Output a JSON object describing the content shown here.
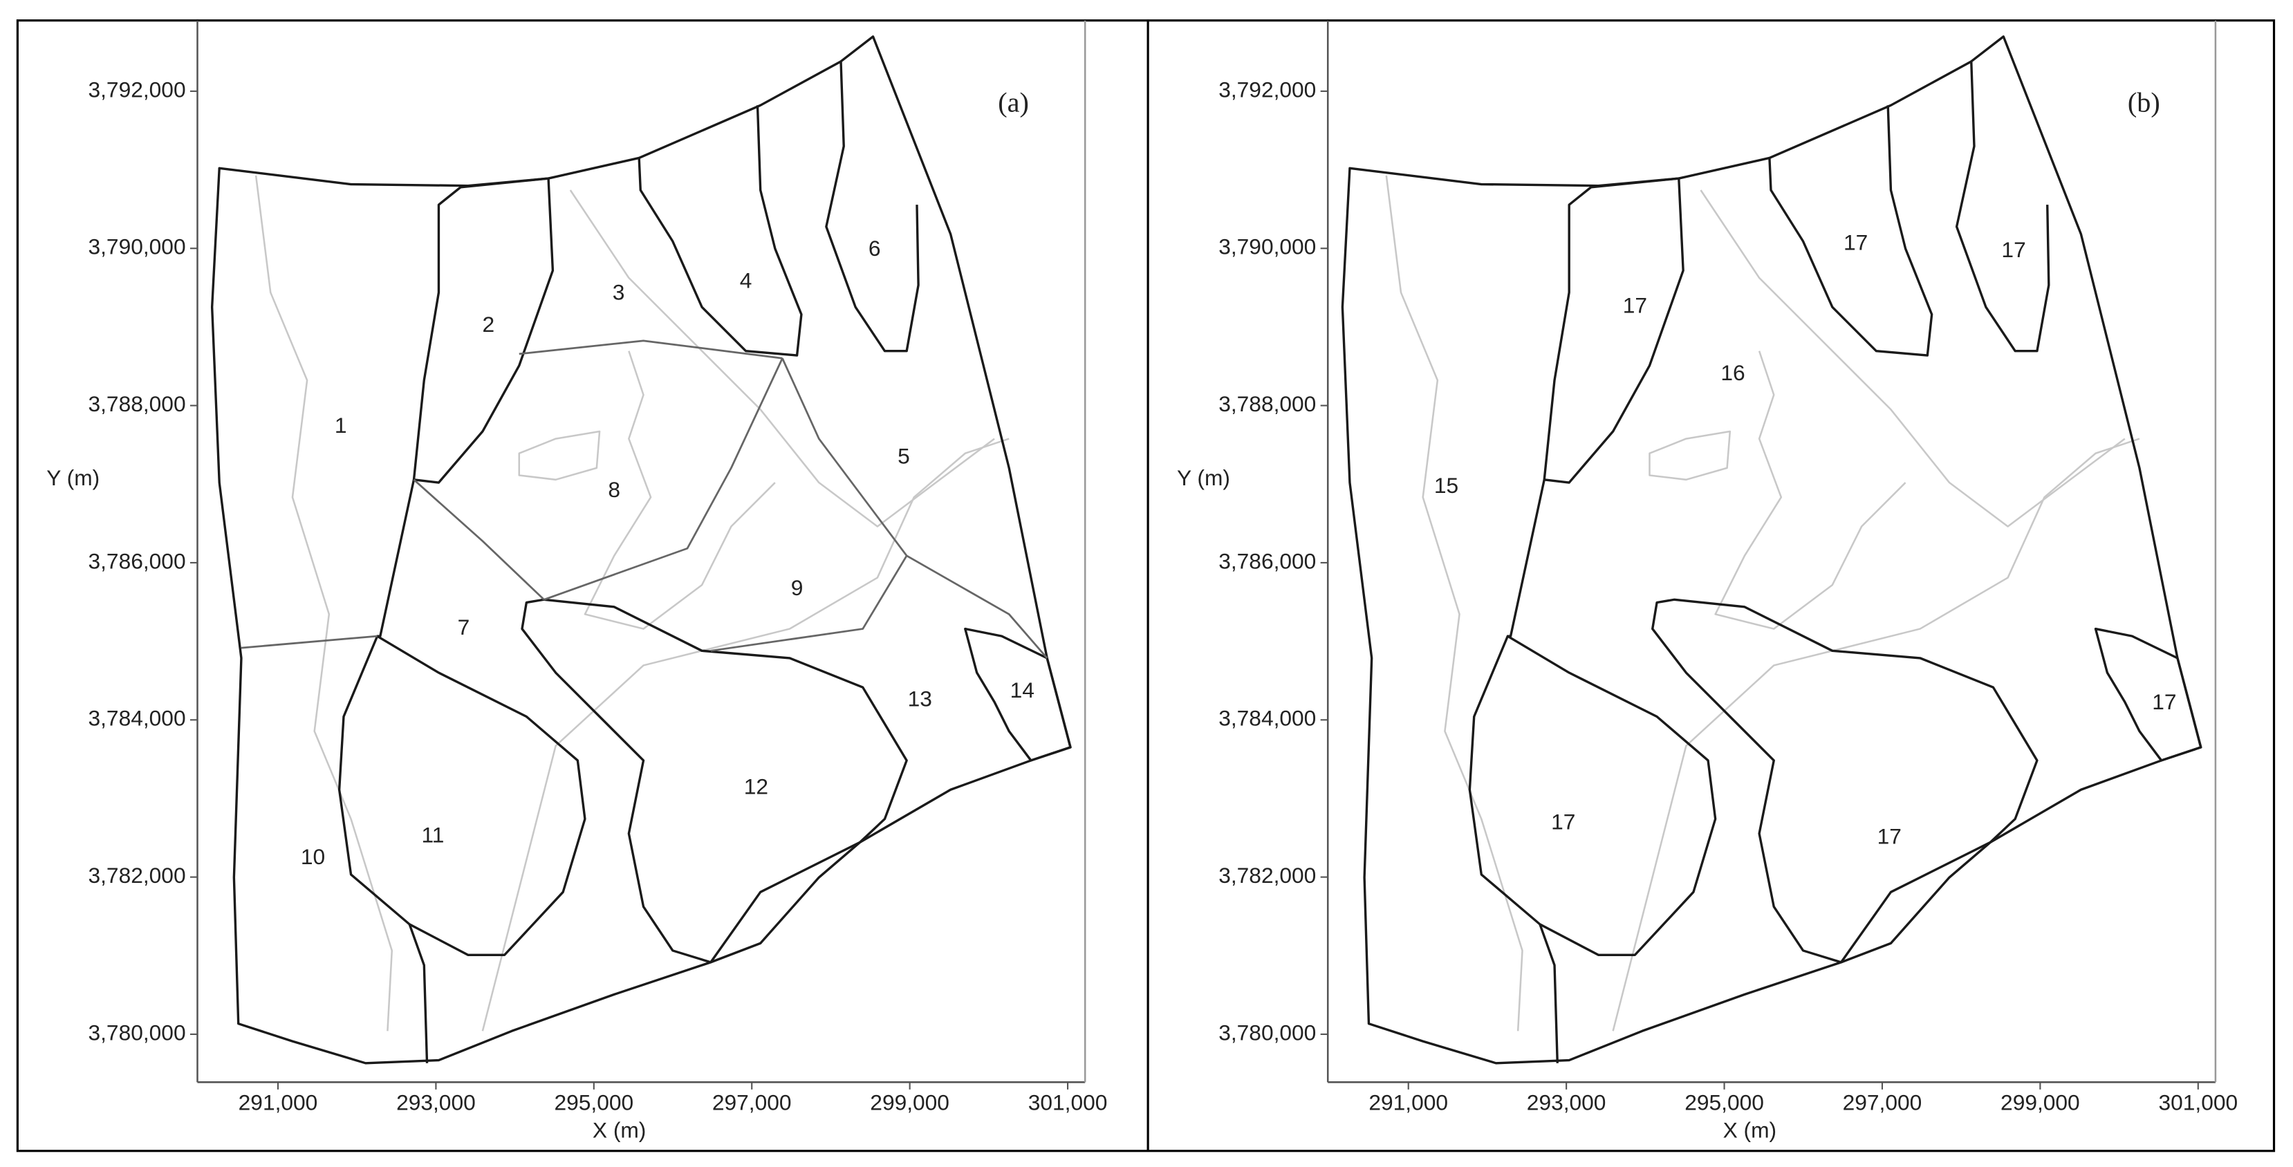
{
  "panels": [
    {
      "label": "(a)",
      "x_axis_title": "X (m)",
      "y_axis_title": "Y (m)",
      "xlim": [
        289980,
        301220
      ],
      "ylim": [
        3779390,
        3792900
      ],
      "xticks": [
        {
          "value": 291000,
          "label": "291,000"
        },
        {
          "value": 293000,
          "label": "293,000"
        },
        {
          "value": 295000,
          "label": "295,000"
        },
        {
          "value": 297000,
          "label": "297,000"
        },
        {
          "value": 299000,
          "label": "299,000"
        },
        {
          "value": 301000,
          "label": "301,000"
        }
      ],
      "yticks": [
        {
          "value": 3780000,
          "label": "3,780,000"
        },
        {
          "value": 3782000,
          "label": "3,782,000"
        },
        {
          "value": 3784000,
          "label": "3,784,000"
        },
        {
          "value": 3786000,
          "label": "3,786,000"
        },
        {
          "value": 3788000,
          "label": "3,788,000"
        },
        {
          "value": 3790000,
          "label": "3,790,000"
        },
        {
          "value": 3792000,
          "label": "3,792,000"
        }
      ],
      "zones": [
        "1",
        "2",
        "3",
        "4",
        "5",
        "6",
        "7",
        "8",
        "9",
        "10",
        "11",
        "12",
        "13",
        "14"
      ]
    },
    {
      "label": "(b)",
      "x_axis_title": "X (m)",
      "y_axis_title": "Y (m)",
      "xlim": [
        289980,
        301220
      ],
      "ylim": [
        3779390,
        3792900
      ],
      "xticks": [
        {
          "value": 291000,
          "label": "291,000"
        },
        {
          "value": 293000,
          "label": "293,000"
        },
        {
          "value": 295000,
          "label": "295,000"
        },
        {
          "value": 297000,
          "label": "297,000"
        },
        {
          "value": 299000,
          "label": "299,000"
        },
        {
          "value": 301000,
          "label": "301,000"
        }
      ],
      "yticks": [
        {
          "value": 3780000,
          "label": "3,780,000"
        },
        {
          "value": 3782000,
          "label": "3,782,000"
        },
        {
          "value": 3784000,
          "label": "3,784,000"
        },
        {
          "value": 3786000,
          "label": "3,786,000"
        },
        {
          "value": 3788000,
          "label": "3,788,000"
        },
        {
          "value": 3790000,
          "label": "3,790,000"
        },
        {
          "value": 3792000,
          "label": "3,792,000"
        }
      ],
      "zones": [
        "15",
        "16",
        "17",
        "17",
        "17",
        "17",
        "17",
        "17"
      ]
    }
  ]
}
